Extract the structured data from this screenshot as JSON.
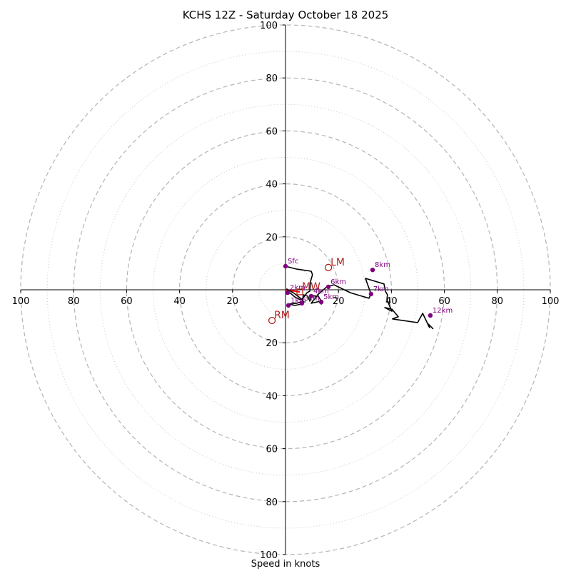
{
  "chart_data": {
    "type": "line",
    "subtype": "hodograph",
    "title": "KCHS 12Z - Saturday October 18 2025",
    "xlabel": "Speed in knots",
    "ylabel": "",
    "rlim": [
      0,
      100
    ],
    "rings_major": [
      20,
      40,
      60,
      80,
      100
    ],
    "rings_minor": [
      10,
      30,
      50,
      70,
      90
    ],
    "x_tick_labels": [
      "100",
      "80",
      "60",
      "40",
      "20",
      "20",
      "40",
      "60",
      "80",
      "100"
    ],
    "x_ticks": [
      -100,
      -80,
      -60,
      -40,
      -20,
      20,
      40,
      60,
      80,
      100
    ],
    "y_tick_labels": [
      "100",
      "80",
      "60",
      "40",
      "20",
      "20",
      "40",
      "60",
      "80",
      "100"
    ],
    "y_ticks": [
      100,
      80,
      60,
      40,
      20,
      -20,
      -40,
      -60,
      -80,
      -100
    ],
    "grid": true,
    "trace_color": "#000000",
    "trace": [
      [
        0.0,
        8.9
      ],
      [
        4.3,
        7.8
      ],
      [
        9.7,
        7.0
      ],
      [
        10.2,
        5.7
      ],
      [
        9.4,
        3.0
      ],
      [
        9.2,
        -0.5
      ],
      [
        8.1,
        -1.1
      ],
      [
        7.0,
        -2.7
      ],
      [
        5.7,
        -3.8
      ],
      [
        3.5,
        -2.7
      ],
      [
        1.3,
        -0.8
      ],
      [
        0.5,
        0.3
      ],
      [
        3.2,
        -1.3
      ],
      [
        5.4,
        -3.0
      ],
      [
        7.0,
        -4.6
      ],
      [
        6.2,
        -5.4
      ],
      [
        3.5,
        -5.9
      ],
      [
        1.1,
        -5.4
      ],
      [
        4.3,
        -5.1
      ],
      [
        6.5,
        -4.3
      ],
      [
        6.7,
        -1.9
      ],
      [
        8.4,
        -2.4
      ],
      [
        9.2,
        -4.3
      ],
      [
        10.0,
        -2.2
      ],
      [
        11.9,
        -2.4
      ],
      [
        9.7,
        -5.1
      ],
      [
        13.2,
        -4.3
      ],
      [
        13.5,
        -5.4
      ],
      [
        13.2,
        -3.8
      ],
      [
        12.1,
        -1.9
      ],
      [
        15.6,
        1.1
      ],
      [
        18.3,
        1.9
      ],
      [
        24.5,
        -1.1
      ],
      [
        31.5,
        -3.2
      ],
      [
        32.3,
        -1.6
      ],
      [
        30.2,
        4.3
      ],
      [
        37.2,
        2.2
      ],
      [
        37.7,
        -0.5
      ],
      [
        38.5,
        -1.9
      ],
      [
        38.3,
        -3.8
      ],
      [
        40.2,
        -8.1
      ],
      [
        37.5,
        -6.7
      ],
      [
        40.2,
        -7.3
      ],
      [
        42.6,
        -10.2
      ],
      [
        40.4,
        -11.0
      ],
      [
        42.3,
        -11.3
      ],
      [
        49.9,
        -12.4
      ],
      [
        51.8,
        -8.9
      ],
      [
        54.4,
        -14.3
      ],
      [
        53.9,
        -12.9
      ],
      [
        55.8,
        -14.8
      ]
    ],
    "height_markers": [
      {
        "label": "Sfc",
        "u": 0.0,
        "v": 8.9
      },
      {
        "label": "1km",
        "u": 1.1,
        "v": -5.9
      },
      {
        "label": "2km",
        "u": 0.8,
        "v": -1.1
      },
      {
        "label": "3km",
        "u": 6.2,
        "v": -5.1
      },
      {
        "label": "4km",
        "u": 9.7,
        "v": -2.4
      },
      {
        "label": "5km",
        "u": 13.5,
        "v": -4.6
      },
      {
        "label": "6km",
        "u": 16.2,
        "v": 1.1
      },
      {
        "label": "7km",
        "u": 32.3,
        "v": -1.6
      },
      {
        "label": "8km",
        "u": 32.9,
        "v": 7.5
      },
      {
        "label": "12km",
        "u": 54.7,
        "v": -9.7
      }
    ],
    "marker_color": "#800080",
    "motion_markers": [
      {
        "label": "LM",
        "u": 16.2,
        "v": 8.4
      },
      {
        "label": "RM",
        "u": -5.1,
        "v": -11.6
      },
      {
        "label": "MW",
        "u": 5.4,
        "v": -0.8
      }
    ],
    "motion_color": "#b22222",
    "shear_vector": {
      "from": [
        0.0,
        0.0
      ],
      "to": [
        5.4,
        -0.8
      ],
      "color": "#ff0000"
    }
  }
}
